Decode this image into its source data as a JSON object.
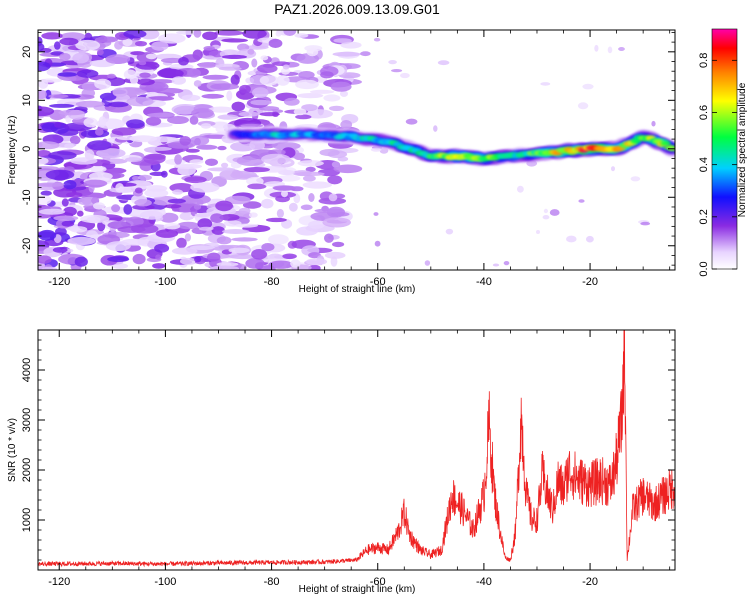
{
  "title": "PAZ1.2026.009.13.09.G01",
  "chart_data": [
    {
      "type": "heatmap",
      "title": "PAZ1.2026.009.13.09.G01",
      "xlabel": "Height of straight line (km)",
      "ylabel": "Frequency (Hz)",
      "xlim": [
        -124,
        -4
      ],
      "ylim": [
        -25,
        24.5
      ],
      "x_ticks": [
        -120,
        -100,
        -80,
        -60,
        -40,
        -20
      ],
      "y_ticks": [
        -20,
        -10,
        0,
        10,
        20
      ],
      "noise_region_x": [
        -124,
        -65
      ],
      "signal_track": {
        "description": "Frequency of the strongest spectral component vs. height",
        "x": [
          -87,
          -80,
          -72,
          -65,
          -58,
          -54,
          -50,
          -45,
          -40,
          -35,
          -30,
          -25,
          -20,
          -15,
          -10,
          -6,
          -4
        ],
        "y": [
          3,
          3,
          3,
          2.5,
          1.5,
          0,
          -1.5,
          -1.5,
          -2,
          -1.5,
          -1,
          -0.5,
          0,
          0,
          2.5,
          1,
          -0.5
        ],
        "peak_amplitude": [
          0.3,
          0.45,
          0.4,
          0.45,
          0.5,
          0.5,
          0.55,
          0.8,
          0.65,
          0.5,
          0.6,
          0.8,
          0.9,
          0.85,
          0.6,
          0.75,
          0.6
        ]
      },
      "colorbar": {
        "label": "Normalized spectral amplitude",
        "range": [
          0,
          0.92
        ],
        "ticks": [
          "0.0",
          "0.2",
          "0.4",
          "0.6",
          "0.8"
        ]
      }
    },
    {
      "type": "line",
      "xlabel": "Height of straight line (km)",
      "ylabel": "SNR (10 * v/v)",
      "xlim": [
        -124,
        -4
      ],
      "ylim": [
        0,
        4800
      ],
      "x_ticks": [
        -120,
        -100,
        -80,
        -60,
        -40,
        -20
      ],
      "y_ticks": [
        1000,
        2000,
        3000,
        4000
      ],
      "series": [
        {
          "name": "SNR",
          "color": "#ee2222",
          "x": [
            -124,
            -110,
            -100,
            -90,
            -80,
            -70,
            -64,
            -62,
            -60,
            -58,
            -56,
            -55,
            -54,
            -52,
            -50,
            -48,
            -46,
            -44,
            -42,
            -40,
            -39,
            -38,
            -37,
            -36,
            -35,
            -34,
            -33,
            -32,
            -31,
            -30,
            -29,
            -28,
            -27,
            -26,
            -25,
            -24,
            -22,
            -20,
            -18,
            -16,
            -15,
            -14,
            -13.5,
            -13,
            -12,
            -10,
            -8,
            -6,
            -4
          ],
          "y": [
            120,
            130,
            120,
            140,
            150,
            160,
            200,
            400,
            450,
            400,
            800,
            1150,
            700,
            400,
            300,
            400,
            1500,
            1200,
            800,
            1500,
            2900,
            1500,
            800,
            250,
            200,
            800,
            3100,
            1500,
            1000,
            1000,
            1900,
            1500,
            1200,
            1800,
            1600,
            2000,
            1800,
            1700,
            1800,
            1700,
            2200,
            3000,
            4800,
            200,
            1200,
            1500,
            1300,
            1500,
            1700
          ]
        }
      ]
    }
  ]
}
